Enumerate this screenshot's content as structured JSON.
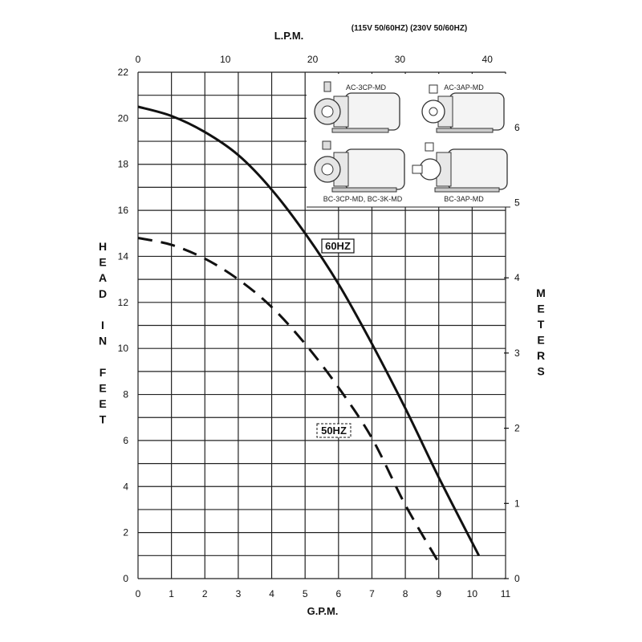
{
  "chart_data": {
    "type": "line",
    "header_note": "(115V 50/60HZ) (230V 50/60HZ)",
    "xlabel": "G.P.M.",
    "x2label": "L.P.M.",
    "ylabel": "HEAD IN FEET",
    "y2label": "METERS",
    "xlim": [
      0,
      11
    ],
    "ylim": [
      0,
      22
    ],
    "x_ticks": [
      "0",
      "1",
      "2",
      "3",
      "4",
      "5",
      "6",
      "7",
      "8",
      "9",
      "10",
      "11"
    ],
    "y_ticks": [
      "0",
      "2",
      "4",
      "6",
      "8",
      "10",
      "12",
      "14",
      "16",
      "18",
      "20",
      "22"
    ],
    "x2_ticks": [
      "0",
      "10",
      "20",
      "30",
      "40"
    ],
    "y2_ticks": [
      "0",
      "1",
      "2",
      "3",
      "4",
      "5",
      "6"
    ],
    "grid": true,
    "series": [
      {
        "name": "60HZ",
        "style": "solid",
        "x": [
          0,
          1,
          2,
          3,
          4,
          5,
          6,
          7,
          8,
          9,
          10.2
        ],
        "y": [
          20.5,
          20.1,
          19.4,
          18.4,
          16.9,
          15.0,
          12.8,
          10.2,
          7.4,
          4.4,
          1.0
        ]
      },
      {
        "name": "50HZ",
        "style": "dashed",
        "x": [
          0,
          1,
          2,
          3,
          4,
          5,
          6,
          7,
          8,
          9
        ],
        "y": [
          14.8,
          14.5,
          13.9,
          13.0,
          11.8,
          10.2,
          8.3,
          6.1,
          3.2,
          0.7
        ]
      }
    ],
    "model_labels": [
      "AC-3CP-MD",
      "AC-3AP-MD",
      "BC-3CP-MD, BC-3K-MD",
      "BC-3AP-MD"
    ]
  },
  "colors": {
    "line": "#111111",
    "grid": "#222222"
  },
  "icons": [
    "pump-icon-ac-3cp",
    "pump-icon-ac-3ap",
    "pump-icon-bc-3cp",
    "pump-icon-bc-3ap"
  ]
}
